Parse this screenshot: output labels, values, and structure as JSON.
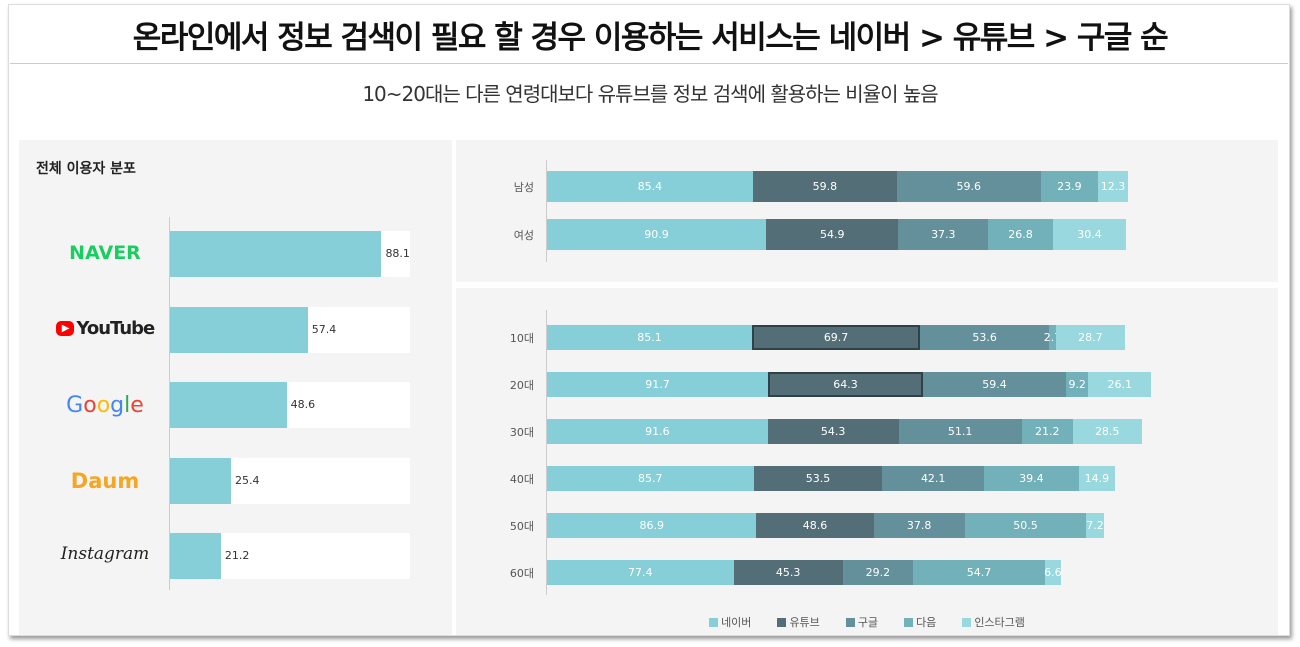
{
  "title": "온라인에서 정보 검색이 필요 할 경우 이용하는 서비스는 네이버 > 유튜브 > 구글 순",
  "subtitle": "10~20대는 다른 연령대보다 유튜브를 정보 검색에 활용하는 비율이 높음",
  "chart_data": [
    {
      "type": "bar",
      "title": "전체 이용자 분포",
      "categories": [
        "NAVER",
        "YouTube",
        "Google",
        "Daum",
        "Instagram"
      ],
      "values": [
        88.1,
        57.4,
        48.6,
        25.4,
        21.2
      ],
      "xlim": [
        0,
        100
      ],
      "color": "#86cfd8",
      "logo_colors": [
        "#19ce60",
        "#222222",
        "#4285f4",
        "#f5a623",
        "#222222"
      ]
    },
    {
      "type": "bar",
      "stacked": true,
      "orientation": "horizontal",
      "categories": [
        "남성",
        "여성"
      ],
      "series": [
        {
          "name": "네이버",
          "values": [
            85.4,
            90.9
          ]
        },
        {
          "name": "유튜브",
          "values": [
            59.8,
            54.9
          ]
        },
        {
          "name": "구글",
          "values": [
            59.6,
            37.3
          ]
        },
        {
          "name": "다음",
          "values": [
            23.9,
            26.8
          ]
        },
        {
          "name": "인스타그램",
          "values": [
            12.3,
            30.4
          ]
        }
      ]
    },
    {
      "type": "bar",
      "stacked": true,
      "orientation": "horizontal",
      "categories": [
        "10대",
        "20대",
        "30대",
        "40대",
        "50대",
        "60대"
      ],
      "series": [
        {
          "name": "네이버",
          "values": [
            85.1,
            91.7,
            91.6,
            85.7,
            86.9,
            77.4
          ]
        },
        {
          "name": "유튜브",
          "values": [
            69.7,
            64.3,
            54.3,
            53.5,
            48.6,
            45.3
          ]
        },
        {
          "name": "구글",
          "values": [
            53.6,
            59.4,
            51.1,
            42.1,
            37.8,
            29.2
          ]
        },
        {
          "name": "다음",
          "values": [
            2.7,
            9.2,
            21.2,
            39.4,
            50.5,
            54.7
          ]
        },
        {
          "name": "인스타그램",
          "values": [
            28.7,
            26.1,
            28.5,
            14.9,
            7.2,
            6.6
          ]
        }
      ],
      "highlighted": {
        "series": "유튜브",
        "categories": [
          "10대",
          "20대"
        ]
      },
      "legend": "bottom"
    }
  ],
  "colors": [
    "#86cfd8",
    "#546e78",
    "#64909b",
    "#72b1ba",
    "#9ad8df"
  ]
}
